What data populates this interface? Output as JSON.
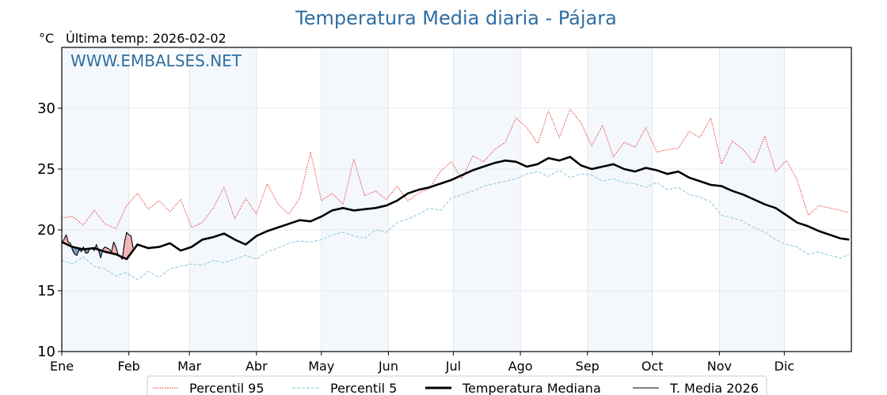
{
  "chart_data": {
    "type": "line",
    "title": "Temperatura Media diaria - Pájara",
    "unit_label": "°C",
    "subtitle": "Última temp: 2026-02-02",
    "watermark": "WWW.EMBALSES.NET",
    "xlabel": "",
    "ylabel": "°C",
    "ylim": [
      10,
      35
    ],
    "xlim_days": [
      0,
      365
    ],
    "yticks": [
      10,
      15,
      20,
      25,
      30
    ],
    "grid": true,
    "legend_position": "bottom-center",
    "months": [
      {
        "label": "Ene",
        "start_day": 0,
        "shaded": true
      },
      {
        "label": "Feb",
        "start_day": 31,
        "shaded": false
      },
      {
        "label": "Mar",
        "start_day": 59,
        "shaded": true
      },
      {
        "label": "Abr",
        "start_day": 90,
        "shaded": false
      },
      {
        "label": "May",
        "start_day": 120,
        "shaded": true
      },
      {
        "label": "Jun",
        "start_day": 151,
        "shaded": false
      },
      {
        "label": "Jul",
        "start_day": 181,
        "shaded": true
      },
      {
        "label": "Ago",
        "start_day": 212,
        "shaded": false
      },
      {
        "label": "Sep",
        "start_day": 243,
        "shaded": true
      },
      {
        "label": "Oct",
        "start_day": 273,
        "shaded": false
      },
      {
        "label": "Nov",
        "start_day": 304,
        "shaded": true
      },
      {
        "label": "Dic",
        "start_day": 334,
        "shaded": false
      }
    ],
    "x_days": [
      0,
      5,
      10,
      15,
      20,
      25,
      30,
      35,
      40,
      45,
      50,
      55,
      60,
      65,
      70,
      75,
      80,
      85,
      90,
      95,
      100,
      105,
      110,
      115,
      120,
      125,
      130,
      135,
      140,
      145,
      150,
      155,
      160,
      165,
      170,
      175,
      180,
      185,
      190,
      195,
      200,
      205,
      210,
      215,
      220,
      225,
      230,
      235,
      240,
      245,
      250,
      255,
      260,
      265,
      270,
      275,
      280,
      285,
      290,
      295,
      300,
      305,
      310,
      315,
      320,
      325,
      330,
      335,
      340,
      345,
      350,
      355,
      360,
      364
    ],
    "series": [
      {
        "name": "Percentil 95",
        "color": "#e8292b",
        "style": "dotted",
        "values": [
          21.0,
          21.1,
          20.4,
          21.6,
          20.5,
          20.1,
          22.0,
          23.0,
          21.7,
          22.4,
          21.5,
          22.5,
          20.2,
          20.6,
          21.8,
          23.5,
          20.9,
          22.6,
          21.3,
          23.8,
          22.1,
          21.3,
          22.6,
          26.4,
          22.4,
          23.0,
          22.1,
          25.8,
          22.8,
          23.2,
          22.5,
          23.6,
          22.4,
          23.0,
          23.4,
          24.8,
          25.6,
          24.2,
          26.1,
          25.6,
          26.6,
          27.2,
          29.2,
          28.4,
          27.1,
          29.8,
          27.6,
          29.9,
          28.8,
          26.9,
          28.6,
          26.0,
          27.2,
          26.8,
          28.4,
          26.4,
          26.6,
          26.7,
          28.1,
          27.6,
          29.2,
          25.4,
          27.3,
          26.6,
          25.5,
          27.7,
          24.8,
          25.7,
          24.1,
          21.2,
          22.0,
          21.8,
          21.6,
          21.4
        ]
      },
      {
        "name": "Percentil 5",
        "color": "#9fcfe0",
        "style": "dashed",
        "values": [
          17.5,
          17.2,
          17.8,
          17.0,
          16.8,
          16.2,
          16.5,
          15.9,
          16.6,
          16.1,
          16.8,
          17.0,
          17.2,
          17.1,
          17.5,
          17.3,
          17.6,
          17.9,
          17.6,
          18.2,
          18.5,
          18.9,
          19.1,
          19.0,
          19.2,
          19.6,
          19.8,
          19.5,
          19.3,
          20.0,
          19.8,
          20.6,
          20.9,
          21.3,
          21.8,
          21.6,
          22.6,
          22.9,
          23.2,
          23.6,
          23.8,
          24.0,
          24.2,
          24.6,
          24.8,
          24.4,
          24.9,
          24.3,
          24.6,
          24.5,
          24.0,
          24.2,
          23.9,
          23.8,
          23.5,
          23.9,
          23.3,
          23.5,
          22.9,
          22.7,
          22.3,
          21.2,
          21.0,
          20.7,
          20.2,
          19.8,
          19.2,
          18.8,
          18.6,
          18.0,
          18.2,
          17.9,
          17.7,
          18.0
        ]
      },
      {
        "name": "Temperatura Mediana",
        "color": "#000000",
        "style": "solid-thick",
        "values": [
          19.0,
          18.6,
          18.4,
          18.5,
          18.2,
          18.0,
          17.6,
          18.8,
          18.5,
          18.6,
          18.9,
          18.3,
          18.6,
          19.2,
          19.4,
          19.7,
          19.2,
          18.8,
          19.5,
          19.9,
          20.2,
          20.5,
          20.8,
          20.7,
          21.1,
          21.6,
          21.8,
          21.6,
          21.7,
          21.8,
          22.0,
          22.4,
          23.0,
          23.3,
          23.5,
          23.8,
          24.1,
          24.5,
          24.9,
          25.2,
          25.5,
          25.7,
          25.6,
          25.2,
          25.4,
          25.9,
          25.7,
          26.0,
          25.3,
          25.0,
          25.2,
          25.4,
          25.0,
          24.8,
          25.1,
          24.9,
          24.6,
          24.8,
          24.3,
          24.0,
          23.7,
          23.6,
          23.2,
          22.9,
          22.5,
          22.1,
          21.8,
          21.2,
          20.6,
          20.3,
          19.9,
          19.6,
          19.3,
          19.2
        ]
      },
      {
        "name": "T. Media 2026",
        "color": "#000000",
        "style": "solid-thin",
        "x_days": [
          0,
          1,
          2,
          3,
          4,
          5,
          6,
          7,
          8,
          9,
          10,
          11,
          12,
          13,
          14,
          15,
          16,
          17,
          18,
          19,
          20,
          21,
          22,
          23,
          24,
          25,
          26,
          27,
          28,
          29,
          30,
          31,
          32,
          33
        ],
        "values": [
          19.0,
          19.2,
          19.6,
          19.0,
          18.9,
          18.3,
          18.0,
          17.9,
          18.4,
          18.2,
          18.6,
          18.1,
          18.1,
          18.5,
          18.5,
          18.3,
          18.8,
          18.3,
          17.7,
          18.4,
          18.6,
          18.5,
          18.4,
          18.2,
          19.0,
          18.6,
          18.0,
          17.8,
          17.6,
          19.0,
          19.8,
          19.6,
          19.5,
          18.5
        ]
      }
    ],
    "fill_between_2026_and_median": {
      "above_color": "#f2b4b6",
      "below_color": "#6e9ec8"
    },
    "legend": [
      {
        "label": "Percentil 95"
      },
      {
        "label": "Percentil 5"
      },
      {
        "label": "Temperatura Mediana"
      },
      {
        "label": "T. Media 2026"
      }
    ]
  }
}
